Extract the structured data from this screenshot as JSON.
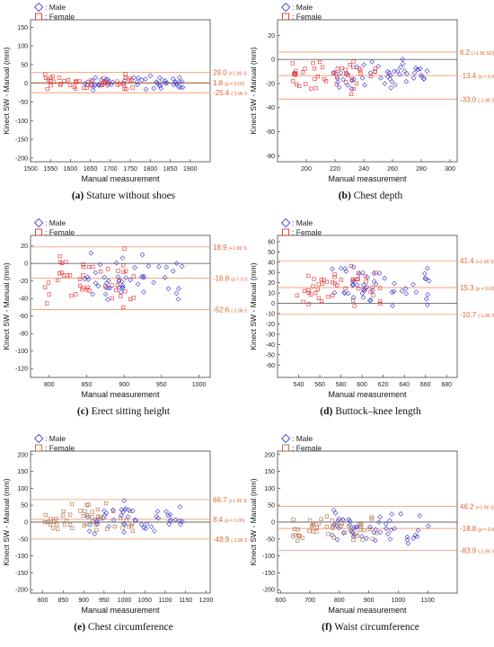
{
  "legend_labels": {
    "male": ": Male",
    "female": ": Female"
  },
  "colors": {
    "male": "#3a3ad0",
    "female": "#e03030",
    "ref_line": "#f2a27a",
    "ref_text": "#e0662a",
    "zero": "#666666",
    "female_brown": "#b06a40"
  },
  "chart_data": [
    {
      "type": "scatter",
      "caption_letter": "(a)",
      "caption_text": " Stature without shoes",
      "xlabel": "Manual measurement",
      "ylabel": "Kinect SW - Manual (mm)",
      "xlim": [
        1500,
        1950
      ],
      "ylim": [
        -210,
        170
      ],
      "xticks": [
        "1500",
        "1550",
        "1600",
        "1650",
        "1700",
        "1750",
        "1800",
        "1850",
        "1900"
      ],
      "yticks": [
        "-200",
        "-150",
        "-100",
        "-50",
        "0",
        "50",
        "100",
        "150"
      ],
      "female_marker": "female",
      "lines": [
        {
          "value": 29.0,
          "main": "29.0",
          "sub": "(+1.96 SD)"
        },
        {
          "value": 1.8,
          "main": "1.8",
          "sub": "(p = 0.00)"
        },
        {
          "value": -25.4,
          "main": "-25.4",
          "sub": "(-1.96 SD)"
        }
      ]
    },
    {
      "type": "scatter",
      "caption_letter": "(b)",
      "caption_text": " Chest depth",
      "xlabel": "Manual measurement",
      "ylabel": "Kinect SW - Manual (mm)",
      "xlim": [
        180,
        305
      ],
      "ylim": [
        -85,
        33
      ],
      "xticks": [
        "200",
        "220",
        "240",
        "260",
        "280",
        "300"
      ],
      "yticks": [
        "-80",
        "-60",
        "-40",
        "-20",
        "0",
        "20"
      ],
      "female_marker": "female",
      "lines": [
        {
          "value": 6.2,
          "main": "6.2",
          "sub": "(+1.96 SD)"
        },
        {
          "value": -13.4,
          "main": "-13.4",
          "sub": "(p = 0.00)"
        },
        {
          "value": -33.0,
          "main": "-33.0",
          "sub": "(-1.96 SD)"
        }
      ]
    },
    {
      "type": "scatter",
      "caption_letter": "(c)",
      "caption_text": " Erect sitting height",
      "xlabel": "Manual measurement",
      "ylabel": "Kinect SW - Manual (mm)",
      "xlim": [
        775,
        1015
      ],
      "ylim": [
        -130,
        32
      ],
      "xticks": [
        "800",
        "850",
        "900",
        "950",
        "1000"
      ],
      "yticks": [
        "-120",
        "-100",
        "-80",
        "-60",
        "-40",
        "-20",
        "0",
        "20"
      ],
      "female_marker": "female",
      "lines": [
        {
          "value": 18.9,
          "main": "18.9",
          "sub": "(+1.96 SD)"
        },
        {
          "value": -16.8,
          "main": "-16.8",
          "sub": "(p = 0.00)"
        },
        {
          "value": -52.6,
          "main": "-52.6",
          "sub": "(-1.96 SD)"
        }
      ]
    },
    {
      "type": "scatter",
      "caption_letter": "(d)",
      "caption_text": " Buttock–knee length",
      "xlabel": "Manual measurement",
      "ylabel": "Kinect SW - Manual (mm)",
      "xlim": [
        520,
        690
      ],
      "ylim": [
        -72,
        66
      ],
      "xticks": [
        "540",
        "560",
        "580",
        "600",
        "620",
        "640",
        "660",
        "680"
      ],
      "yticks": [
        "-60",
        "-50",
        "-40",
        "-30",
        "-20",
        "-10",
        "0",
        "10",
        "20",
        "30",
        "40",
        "50",
        "60"
      ],
      "female_marker": "female",
      "lines": [
        {
          "value": 41.4,
          "main": "41.4",
          "sub": "(+1.96 SD)"
        },
        {
          "value": 15.3,
          "main": "15.3",
          "sub": "(p = 0.00)"
        },
        {
          "value": -10.7,
          "main": "-10.7",
          "sub": "(-1.96 SD)"
        }
      ]
    },
    {
      "type": "scatter",
      "caption_letter": "(e)",
      "caption_text": " Chest circumference",
      "xlabel": "Manual measurement",
      "ylabel": "Kinect SW - Manual (mm)",
      "xlim": [
        770,
        1210
      ],
      "ylim": [
        -210,
        210
      ],
      "xticks": [
        "800",
        "900",
        "1000",
        "1100",
        "1200"
      ],
      "xticks_full": [
        "800",
        "850",
        "900",
        "950",
        "1000",
        "1050",
        "1100",
        "1150",
        "1200"
      ],
      "yticks": [
        "-200",
        "-150",
        "-100",
        "-50",
        "0",
        "50",
        "100",
        "150",
        "200"
      ],
      "female_marker": "female_brown",
      "lines": [
        {
          "value": 66.7,
          "main": "66.7",
          "sub": "(+1.96 SD)"
        },
        {
          "value": 8.4,
          "main": "8.4",
          "sub": "(p = 0.00)"
        },
        {
          "value": -49.9,
          "main": "-49.9",
          "sub": "(-1.96 SD)"
        }
      ]
    },
    {
      "type": "scatter",
      "caption_letter": "(f)",
      "caption_text": " Waist circumference",
      "xlabel": "Manual measurement",
      "ylabel": "Kinect SW - Manual (mm)",
      "xlim": [
        590,
        1200
      ],
      "ylim": [
        -210,
        210
      ],
      "xticks": [
        "600",
        "700",
        "800",
        "900",
        "1000",
        "1100"
      ],
      "yticks": [
        "-200",
        "-150",
        "-100",
        "-50",
        "0",
        "50",
        "100",
        "150",
        "200"
      ],
      "female_marker": "female_brown",
      "lines": [
        {
          "value": 46.2,
          "main": "46.2",
          "sub": "(+1.96 SD)"
        },
        {
          "value": -18.8,
          "main": "-18.8",
          "sub": "(p = 0.00)"
        },
        {
          "value": -83.9,
          "main": "-83.9",
          "sub": "(-1.96 SD)"
        }
      ]
    }
  ]
}
